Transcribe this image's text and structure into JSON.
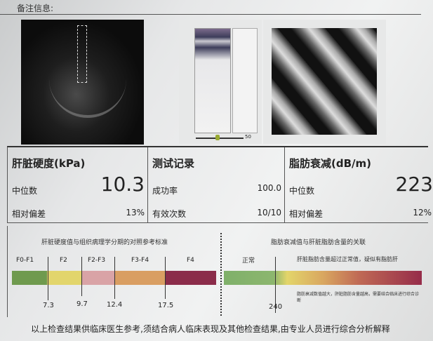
{
  "remark_label": "备注信息:",
  "images": {
    "mmode_slider_value": "50"
  },
  "stiffness": {
    "title": "肝脏硬度(kPa)",
    "median_label": "中位数",
    "median": "10.3",
    "iqr_label": "相对偏差",
    "iqr": "13%"
  },
  "record": {
    "title": "测试记录",
    "success_label": "成功率",
    "success": "100.0",
    "valid_label": "有效次数",
    "valid": "10/10"
  },
  "cap": {
    "title": "脂肪衰减(dB/m)",
    "median_label": "中位数",
    "median": "223",
    "iqr_label": "相对偏差",
    "iqr": "12%"
  },
  "stiffness_ref": {
    "title": "肝脏硬度值与组织病理学分期的对照参考标准",
    "stages": [
      "F0-F1",
      "F2",
      "F2-F3",
      "F3-F4",
      "F4"
    ],
    "thresholds": [
      "7.3",
      "9.7",
      "12.4",
      "17.5"
    ],
    "colors": [
      "#6f9a4e",
      "#e2d56c",
      "#d9a3a6",
      "#d99e62",
      "#8b2c4a"
    ]
  },
  "cap_ref": {
    "title": "脂肪衰减值与肝脏脂肪含量的关联",
    "normal_label": "正常",
    "abnormal_label": "肝脏脂肪含量超过正常值，疑似有脂肪肝",
    "note": "脂肪衰减数值越大，肝脏脂肪含量越高，需要结合临床进行综合诊断",
    "threshold": "240"
  },
  "footer": "以上检查结果供临床医生参考,须结合病人临床表现及其他检查结果,由专业人员进行综合分析解释"
}
